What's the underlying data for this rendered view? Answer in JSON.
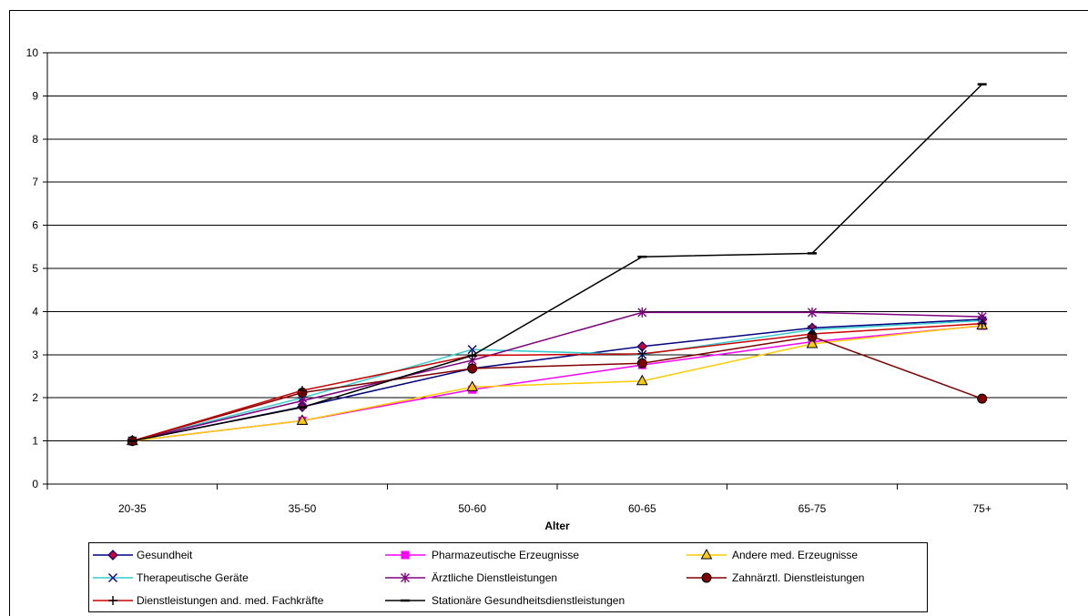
{
  "chart_data": {
    "type": "line",
    "categories": [
      "20-35",
      "35-50",
      "50-60",
      "60-65",
      "65-75",
      "75+"
    ],
    "xlabel": "Alter",
    "ylim": [
      0,
      10
    ],
    "yticks": [
      0,
      1,
      2,
      3,
      4,
      5,
      6,
      7,
      8,
      9,
      10
    ],
    "grid": "horizontal",
    "legend": "bottom",
    "series": [
      {
        "name": "Gesundheit",
        "values": [
          1,
          1.79,
          2.68,
          3.19,
          3.62,
          3.82
        ],
        "color": "#000080",
        "marker": "diamond",
        "marker_fill": "#cc0033",
        "marker_stroke": "#000080"
      },
      {
        "name": "Pharmazeutische Erzeugnisse",
        "values": [
          1,
          1.47,
          2.19,
          2.76,
          3.3,
          3.67
        ],
        "color": "#ff00ff",
        "marker": "square",
        "marker_fill": "#ff00ff",
        "marker_stroke": "#ff00ff"
      },
      {
        "name": "Andere med. Erzeugnisse",
        "values": [
          1,
          1.47,
          2.25,
          2.39,
          3.25,
          3.68
        ],
        "color": "#ffcc00",
        "marker": "triangle",
        "marker_fill": "#ffcc00",
        "marker_stroke": "#000000"
      },
      {
        "name": "Therapeutische Geräte",
        "values": [
          1,
          2.0,
          3.12,
          3.0,
          3.58,
          3.79
        ],
        "color": "#33cccc",
        "marker": "x",
        "marker_fill": "none",
        "marker_stroke": "#000080"
      },
      {
        "name": "Ärztliche Dienstleistungen",
        "values": [
          1,
          1.93,
          2.87,
          3.98,
          3.98,
          3.88
        ],
        "color": "#800080",
        "marker": "asterisk",
        "marker_fill": "none",
        "marker_stroke": "#800080"
      },
      {
        "name": "Zahnärztl. Dienstleistungen",
        "values": [
          1,
          2.12,
          2.68,
          2.8,
          3.42,
          1.98
        ],
        "color": "#800000",
        "marker": "circle",
        "marker_fill": "#800000",
        "marker_stroke": "#000000"
      },
      {
        "name": "Dienstleistungen and. med. Fachkräfte",
        "values": [
          1,
          2.17,
          2.98,
          3.02,
          3.48,
          3.72
        ],
        "color": "#cc0000",
        "marker": "plus",
        "marker_fill": "none",
        "marker_stroke": "#000000"
      },
      {
        "name": "Stationäre Gesundheitsdienstleistungen",
        "values": [
          1,
          1.78,
          2.98,
          5.27,
          5.35,
          9.27
        ],
        "color": "#000000",
        "marker": "dash",
        "marker_fill": "none",
        "marker_stroke": "#000000"
      }
    ]
  }
}
